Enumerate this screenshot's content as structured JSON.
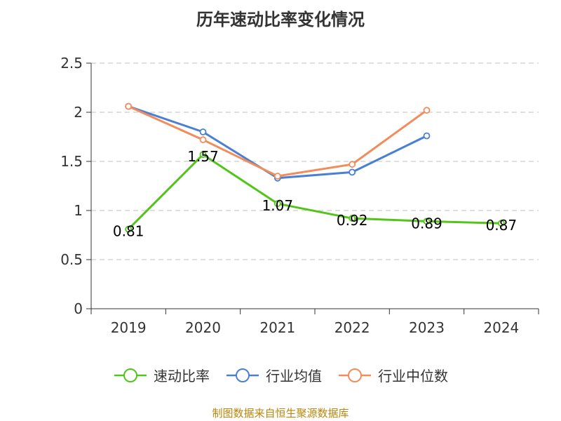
{
  "chart_data": {
    "type": "line",
    "title": "历年速动比率变化情况",
    "categories": [
      "2019",
      "2020",
      "2021",
      "2022",
      "2023",
      "2024"
    ],
    "ylim": [
      0,
      2.5
    ],
    "yticks": [
      "0",
      "0.5",
      "1",
      "1.5",
      "2",
      "2.5"
    ],
    "grid": true,
    "legend_position": "bottom",
    "series": [
      {
        "name": "速动比率",
        "color": "#52c41a",
        "values": [
          0.81,
          1.57,
          1.07,
          0.92,
          0.89,
          0.87
        ],
        "labels": [
          "0.81",
          "1.57",
          "1.07",
          "0.92",
          "0.89",
          "0.87"
        ]
      },
      {
        "name": "行业均值",
        "color": "#4a7fd4",
        "values": [
          2.06,
          1.8,
          1.33,
          1.39,
          1.76,
          null
        ]
      },
      {
        "name": "行业中位数",
        "color": "#f28c5a",
        "values": [
          2.06,
          1.72,
          1.35,
          1.47,
          2.02,
          null
        ]
      }
    ]
  },
  "source": "制图数据来自恒生聚源数据库"
}
